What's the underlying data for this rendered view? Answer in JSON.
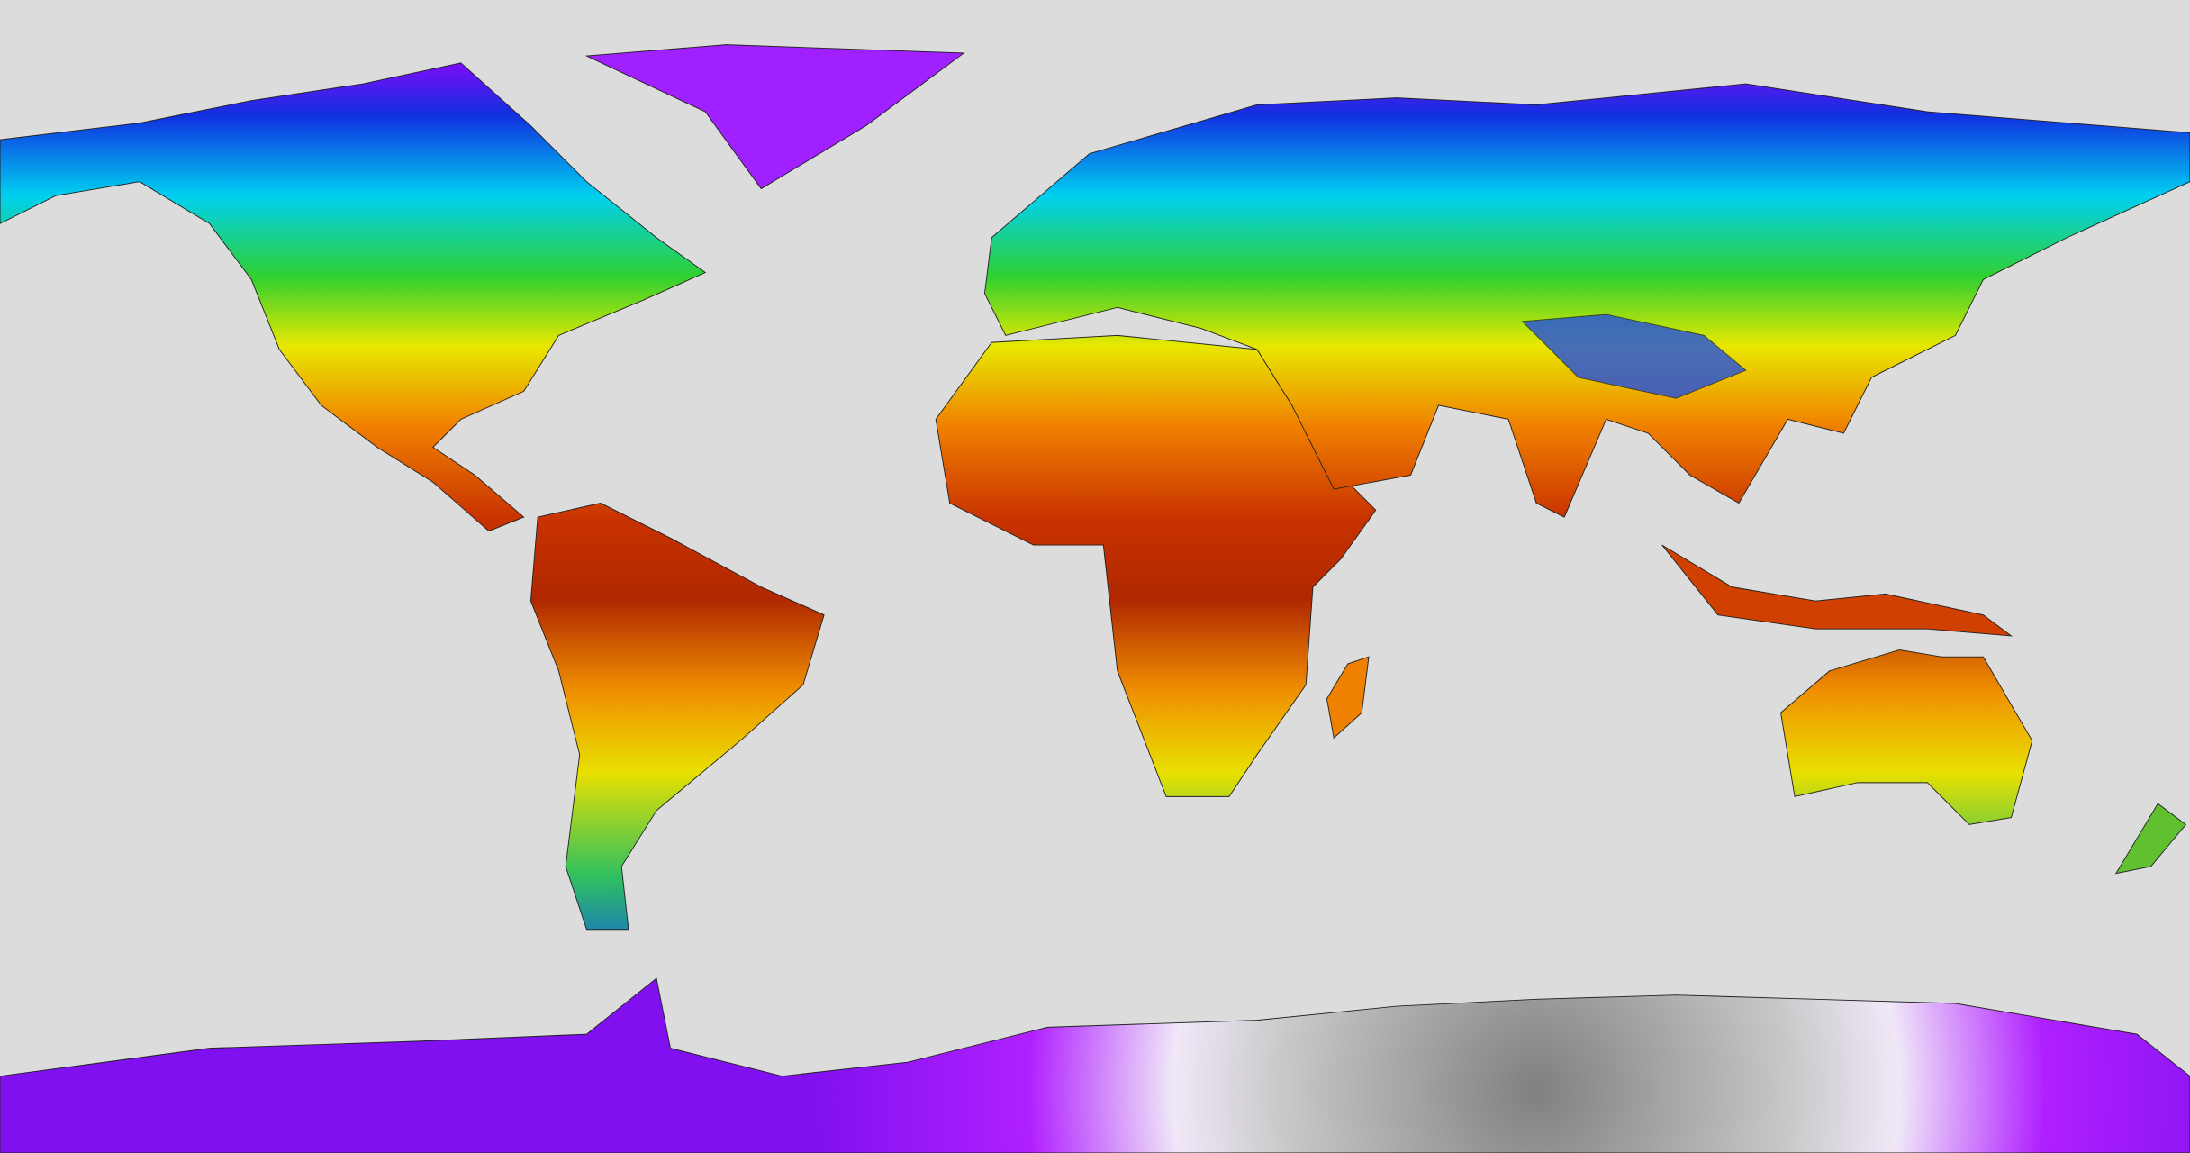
{
  "map": {
    "type": "global surface temperature raster",
    "projection": "equirectangular",
    "ocean_color": "#dcdcdc",
    "border_color": "#222222",
    "palette": [
      "#a000ff",
      "#1030e0",
      "#00d8f0",
      "#20d040",
      "#f0f000",
      "#f08000",
      "#d03000",
      "#8a1a00",
      "#808080",
      "#f0f0f0"
    ]
  }
}
